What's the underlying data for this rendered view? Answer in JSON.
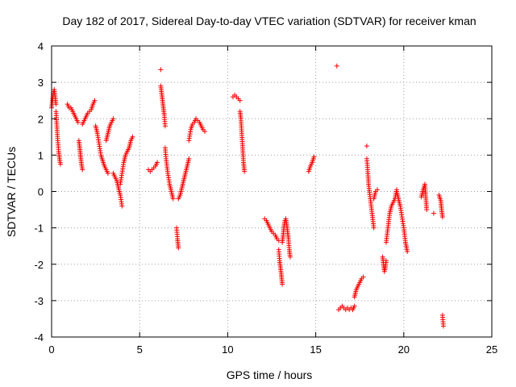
{
  "chart_data": {
    "type": "scatter",
    "title": "Day 182 of 2017, Sidereal Day-to-day VTEC variation (SDTVAR) for receiver kman",
    "xlabel": "GPS time / hours",
    "ylabel": "SDTVAR / TECUs",
    "xlim": [
      0,
      25
    ],
    "ylim": [
      -4,
      4
    ],
    "xticks": [
      0,
      5,
      10,
      15,
      20,
      25
    ],
    "yticks": [
      -4,
      -3,
      -2,
      -1,
      0,
      1,
      2,
      3,
      4
    ],
    "grid": true,
    "marker": "plus",
    "color": "#ff0000",
    "segments": [
      {
        "x": [
          0.0,
          0.05,
          0.1,
          0.15,
          0.2,
          0.25
        ],
        "y": [
          2.3,
          2.5,
          2.7,
          2.8,
          2.6,
          2.4
        ]
      },
      {
        "x": [
          0.25,
          0.3,
          0.35,
          0.4,
          0.45,
          0.5
        ],
        "y": [
          2.2,
          1.8,
          1.4,
          1.1,
          0.9,
          0.75
        ]
      },
      {
        "x": [
          0.9,
          1.0,
          1.1,
          1.2,
          1.3,
          1.4,
          1.5
        ],
        "y": [
          2.4,
          2.3,
          2.3,
          2.2,
          2.1,
          2.0,
          1.9
        ]
      },
      {
        "x": [
          1.55,
          1.6,
          1.65,
          1.7,
          1.75
        ],
        "y": [
          1.4,
          1.2,
          0.95,
          0.75,
          0.6
        ]
      },
      {
        "x": [
          1.75,
          1.85,
          1.95,
          2.05,
          2.15,
          2.25,
          2.35,
          2.45
        ],
        "y": [
          1.85,
          1.95,
          2.05,
          2.15,
          2.2,
          2.25,
          2.4,
          2.5
        ]
      },
      {
        "x": [
          2.5,
          2.6,
          2.7,
          2.8,
          2.9,
          3.0,
          3.1,
          3.2
        ],
        "y": [
          1.8,
          1.6,
          1.3,
          1.0,
          0.85,
          0.7,
          0.6,
          0.5
        ]
      },
      {
        "x": [
          3.1,
          3.2,
          3.3,
          3.4,
          3.5
        ],
        "y": [
          1.4,
          1.6,
          1.8,
          1.9,
          2.0
        ]
      },
      {
        "x": [
          3.5,
          3.6,
          3.7,
          3.8,
          3.9,
          4.0
        ],
        "y": [
          0.5,
          0.4,
          0.3,
          0.1,
          -0.1,
          -0.4
        ]
      },
      {
        "x": [
          3.9,
          4.0,
          4.1,
          4.2,
          4.3,
          4.4,
          4.5,
          4.6
        ],
        "y": [
          0.2,
          0.5,
          0.8,
          1.0,
          1.1,
          1.2,
          1.4,
          1.5
        ]
      },
      {
        "x": [
          5.5,
          5.6,
          5.7,
          5.8,
          5.9,
          6.0
        ],
        "y": [
          0.6,
          0.55,
          0.6,
          0.65,
          0.7,
          0.8
        ]
      },
      {
        "x": [
          6.2
        ],
        "y": [
          3.35
        ]
      },
      {
        "x": [
          6.2,
          6.25,
          6.3,
          6.35,
          6.4,
          6.45
        ],
        "y": [
          2.9,
          2.7,
          2.5,
          2.3,
          2.1,
          1.8
        ]
      },
      {
        "x": [
          6.45,
          6.5,
          6.6,
          6.7,
          6.8,
          6.9
        ],
        "y": [
          1.2,
          0.9,
          0.5,
          0.2,
          0.0,
          -0.2
        ]
      },
      {
        "x": [
          7.1,
          7.15,
          7.2
        ],
        "y": [
          -1.0,
          -1.3,
          -1.55
        ]
      },
      {
        "x": [
          7.2,
          7.3,
          7.4,
          7.5,
          7.6,
          7.7,
          7.8
        ],
        "y": [
          -0.2,
          -0.1,
          0.1,
          0.3,
          0.5,
          0.7,
          0.9
        ]
      },
      {
        "x": [
          7.8,
          7.9,
          8.0,
          8.1,
          8.2,
          8.3,
          8.4,
          8.5,
          8.6,
          8.7
        ],
        "y": [
          1.4,
          1.7,
          1.85,
          1.9,
          2.0,
          1.95,
          1.9,
          1.8,
          1.7,
          1.65
        ]
      },
      {
        "x": [
          10.3,
          10.4,
          10.5,
          10.6,
          10.7
        ],
        "y": [
          2.6,
          2.65,
          2.6,
          2.55,
          2.5
        ]
      },
      {
        "x": [
          10.7,
          10.75,
          10.8,
          10.85,
          10.9,
          10.95
        ],
        "y": [
          2.2,
          2.0,
          1.6,
          1.2,
          0.8,
          0.55
        ]
      },
      {
        "x": [
          12.1,
          12.2,
          12.3,
          12.4,
          12.5,
          12.6,
          12.7,
          12.8,
          12.9
        ],
        "y": [
          -0.75,
          -0.8,
          -0.9,
          -1.0,
          -1.1,
          -1.15,
          -1.2,
          -1.3,
          -1.35
        ]
      },
      {
        "x": [
          12.9,
          12.95,
          13.0,
          13.05,
          13.1
        ],
        "y": [
          -1.6,
          -1.9,
          -2.1,
          -2.3,
          -2.55
        ]
      },
      {
        "x": [
          13.1,
          13.15,
          13.2,
          13.25,
          13.3,
          13.35,
          13.4,
          13.45,
          13.5,
          13.55
        ],
        "y": [
          -1.4,
          -1.2,
          -0.95,
          -0.8,
          -0.75,
          -0.9,
          -1.1,
          -1.3,
          -1.6,
          -1.8
        ]
      },
      {
        "x": [
          14.6,
          14.7,
          14.8,
          14.9
        ],
        "y": [
          0.55,
          0.7,
          0.8,
          0.95
        ]
      },
      {
        "x": [
          16.2
        ],
        "y": [
          3.45
        ]
      },
      {
        "x": [
          16.3,
          16.4,
          16.5,
          16.6,
          16.7,
          16.8,
          16.9,
          17.0,
          17.1,
          17.2
        ],
        "y": [
          -3.25,
          -3.2,
          -3.15,
          -3.2,
          -3.25,
          -3.2,
          -3.25,
          -3.2,
          -3.25,
          -3.15
        ]
      },
      {
        "x": [
          17.2,
          17.3,
          17.4,
          17.5,
          17.6,
          17.7
        ],
        "y": [
          -2.9,
          -2.7,
          -2.6,
          -2.5,
          -2.4,
          -2.35
        ]
      },
      {
        "x": [
          17.9
        ],
        "y": [
          1.25
        ]
      },
      {
        "x": [
          17.9,
          17.95,
          18.0,
          18.1,
          18.2,
          18.3
        ],
        "y": [
          0.9,
          0.6,
          0.2,
          -0.2,
          -0.6,
          -1.0
        ]
      },
      {
        "x": [
          18.3,
          18.4,
          18.5
        ],
        "y": [
          -0.2,
          0.0,
          0.05
        ]
      },
      {
        "x": [
          18.8,
          18.85,
          18.9,
          18.95,
          19.0
        ],
        "y": [
          -1.8,
          -2.0,
          -2.2,
          -2.1,
          -1.9
        ]
      },
      {
        "x": [
          19.0,
          19.1,
          19.2,
          19.3,
          19.4,
          19.5,
          19.6
        ],
        "y": [
          -1.4,
          -1.0,
          -0.6,
          -0.4,
          -0.3,
          -0.2,
          0.05
        ]
      },
      {
        "x": [
          19.6,
          19.7,
          19.8,
          19.9,
          20.0,
          20.1,
          20.2
        ],
        "y": [
          0.0,
          -0.2,
          -0.4,
          -0.7,
          -1.0,
          -1.4,
          -1.65
        ]
      },
      {
        "x": [
          21.0,
          21.1,
          21.2,
          21.3
        ],
        "y": [
          -0.15,
          0.05,
          0.2,
          -0.5
        ]
      },
      {
        "x": [
          21.7
        ],
        "y": [
          -0.6
        ]
      },
      {
        "x": [
          22.0,
          22.1,
          22.15,
          22.2
        ],
        "y": [
          -0.1,
          -0.25,
          -0.5,
          -0.7
        ]
      },
      {
        "x": [
          22.2,
          22.25
        ],
        "y": [
          -3.4,
          -3.7
        ]
      }
    ]
  }
}
